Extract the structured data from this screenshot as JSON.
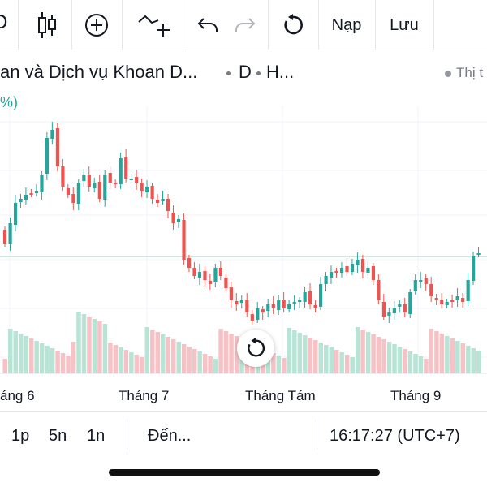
{
  "toolbar": {
    "cut_glyph": "Ɔ",
    "load_label": "Nạp",
    "save_label": "Lưu"
  },
  "symbol": {
    "name": "an và Dịch vụ Khoan D...",
    "interval": "D",
    "exchange": "H...",
    "market_status": "Thị t",
    "change_fragment": "%)"
  },
  "chart_data": {
    "type": "candlestick",
    "x_labels": [
      "áng 6",
      "Tháng 7",
      "Tháng Tám",
      "Tháng 9"
    ],
    "grid": true,
    "colors": {
      "up": "#26a69a",
      "down": "#ef5350",
      "up_volume": "#b7e4d5",
      "down_volume": "#f7c2c6"
    }
  },
  "bottom": {
    "range_1": "1p",
    "range_2": "5n",
    "range_3": "1n",
    "goto": "Đến...",
    "clock": "16:17:27 (UTC+7)"
  }
}
